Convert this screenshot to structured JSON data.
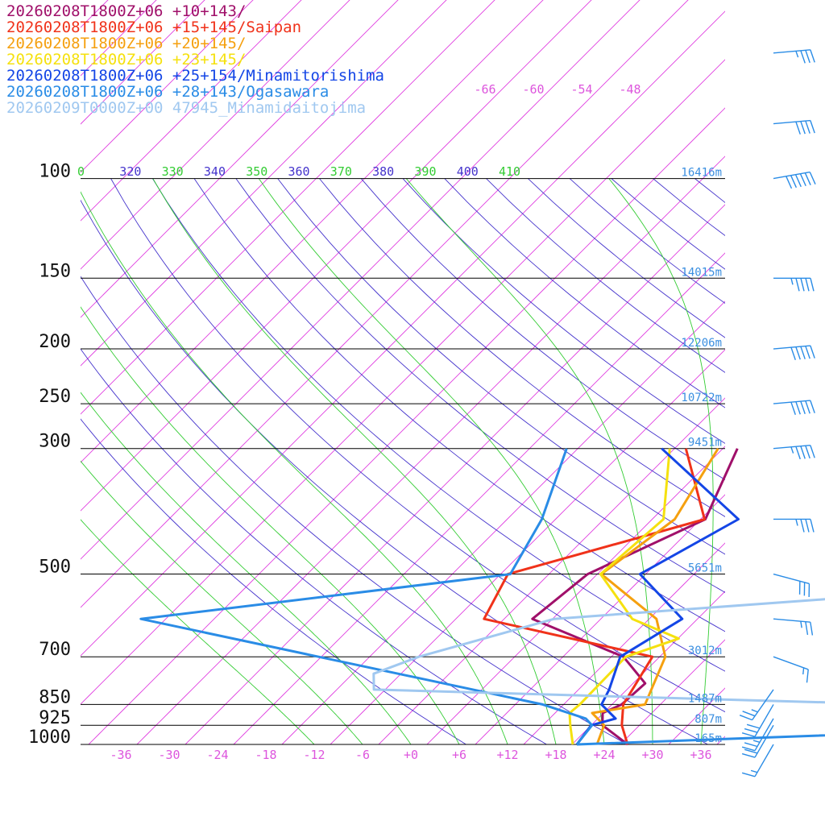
{
  "legend": [
    {
      "label": "20260208T1800Z+06 +10+143/",
      "color": "#a0106a"
    },
    {
      "label": "20260208T1800Z+06 +15+145/Saipan",
      "color": "#f0321a"
    },
    {
      "label": "20260208T1800Z+06 +20+145/",
      "color": "#f5a00f"
    },
    {
      "label": "20260208T1800Z+06 +23+145/",
      "color": "#f5e10f"
    },
    {
      "label": "20260208T1800Z+06 +25+154/Minamitorishima",
      "color": "#1446e6"
    },
    {
      "label": "20260208T1800Z+06 +28+143/Ogasawara",
      "color": "#2a8ce6"
    },
    {
      "label": "20260209T0000Z+00 47945_Minamidaitojima",
      "color": "#a0c8f0"
    }
  ],
  "chart_data": {
    "type": "line",
    "chart_kind": "skew-T log-p diagram",
    "pressure_levels": [
      {
        "p": 100,
        "label": "100",
        "height": "16416m"
      },
      {
        "p": 150,
        "label": "150",
        "height": "14015m"
      },
      {
        "p": 200,
        "label": "200",
        "height": "12206m"
      },
      {
        "p": 250,
        "label": "250",
        "height": "10722m"
      },
      {
        "p": 300,
        "label": "300",
        "height": "9451m"
      },
      {
        "p": 500,
        "label": "500",
        "height": "5651m"
      },
      {
        "p": 700,
        "label": "700",
        "height": "3012m"
      },
      {
        "p": 850,
        "label": "850",
        "height": "1487m"
      },
      {
        "p": 925,
        "label": "925",
        "height": "807m"
      },
      {
        "p": 1000,
        "label": "1000",
        "height": "165m"
      }
    ],
    "x_ticks": [
      "-36",
      "-30",
      "-24",
      "-18",
      "-12",
      "-6",
      "+0",
      "+6",
      "+12",
      "+18",
      "+24",
      "+30",
      "+36"
    ],
    "x_tick_values": [
      -36,
      -30,
      -24,
      -18,
      -12,
      -6,
      0,
      6,
      12,
      18,
      24,
      30,
      36
    ],
    "top_isotherm_labels": [
      "-66",
      "-60",
      "-54",
      "-48"
    ],
    "theta_labels": [
      {
        "text": "0",
        "color": "#33cc33"
      },
      {
        "text": "320",
        "color": "#4433cc"
      },
      {
        "text": "330",
        "color": "#33cc33"
      },
      {
        "text": "340",
        "color": "#4433cc"
      },
      {
        "text": "350",
        "color": "#33cc33"
      },
      {
        "text": "360",
        "color": "#4433cc"
      },
      {
        "text": "370",
        "color": "#33cc33"
      },
      {
        "text": "380",
        "color": "#4433cc"
      },
      {
        "text": "390",
        "color": "#33cc33"
      },
      {
        "text": "400",
        "color": "#4433cc"
      },
      {
        "text": "410",
        "color": "#33cc33"
      }
    ],
    "temperature_range": [
      -41,
      39
    ],
    "pressure_range": [
      100,
      1000
    ],
    "log_pressure_axis": true,
    "colors": {
      "isotherm": "#e040e0",
      "dry_adiabat": "#4433cc",
      "moist_adiabat": "#33cc33",
      "isobar": "#000000",
      "level_height_label": "#3b8fe0",
      "tick_label": "#dd55dd"
    },
    "series": [
      {
        "name": "20260208T1800Z+06 +10+143/",
        "color": "#a0106a",
        "temperature": [
          [
            33.8,
            20
          ],
          [
            50.4,
            40
          ],
          [
            56.8,
            60
          ],
          [
            80.3,
            80
          ],
          [
            88.9,
            95
          ],
          [
            100.6,
            110
          ],
          [
            100.7,
            130
          ],
          [
            109.5,
            150
          ],
          [
            114.5,
            175
          ],
          [
            120.6,
            200
          ],
          [
            120.9,
            250
          ],
          [
            117.6,
            300
          ],
          [
            119.6,
            400
          ],
          [
            123.8,
            500
          ],
          [
            122.3,
            600
          ],
          [
            124.1,
            700
          ],
          [
            121.8,
            800
          ],
          [
            123.1,
            850
          ],
          [
            124.6,
            900
          ],
          [
            126.5,
            925
          ],
          [
            126.9,
            1000
          ]
        ],
        "dewpoint": [
          [
            3.8,
            300
          ],
          [
            8.6,
            400
          ],
          [
            0.8,
            500
          ],
          [
            -0.5,
            600
          ],
          [
            15.5,
            700
          ],
          [
            21.5,
            780
          ],
          [
            21.2,
            850
          ],
          [
            19.9,
            880
          ],
          [
            21.4,
            925
          ],
          [
            26.9,
            1000
          ]
        ]
      },
      {
        "name": "20260208T1800Z+06 +15+145/Saipan",
        "color": "#f0321a",
        "temperature": [
          [
            34.1,
            20
          ],
          [
            53.2,
            40
          ],
          [
            63.2,
            60
          ],
          [
            81.5,
            80
          ],
          [
            90.2,
            95
          ],
          [
            95.1,
            110
          ],
          [
            97.0,
            130
          ],
          [
            106.2,
            150
          ],
          [
            111.4,
            175
          ],
          [
            117.9,
            200
          ],
          [
            119.4,
            250
          ],
          [
            118.4,
            300
          ],
          [
            118.5,
            400
          ],
          [
            122.3,
            500
          ],
          [
            119.3,
            600
          ],
          [
            122.2,
            700
          ],
          [
            122.3,
            800
          ],
          [
            120.0,
            850
          ],
          [
            123.5,
            900
          ],
          [
            124.3,
            925
          ],
          [
            126.9,
            1000
          ]
        ],
        "dewpoint": [
          [
            -2.6,
            300
          ],
          [
            8.5,
            400
          ],
          [
            -9.1,
            500
          ],
          [
            -6.5,
            600
          ],
          [
            19.1,
            700
          ],
          [
            21.4,
            850
          ],
          [
            23.8,
            925
          ],
          [
            26.9,
            1000
          ]
        ]
      },
      {
        "name": "20260208T1800Z+06 +20+145/",
        "color": "#f5a00f",
        "temperature": [
          [
            34.0,
            20
          ],
          [
            47.9,
            40
          ],
          [
            59.4,
            60
          ],
          [
            79.3,
            80
          ],
          [
            85.1,
            95
          ],
          [
            88.2,
            110
          ],
          [
            98.2,
            130
          ],
          [
            108.7,
            150
          ],
          [
            113.6,
            175
          ],
          [
            114.0,
            200
          ],
          [
            120.6,
            250
          ],
          [
            117.3,
            300
          ],
          [
            115.9,
            400
          ],
          [
            120.8,
            500
          ],
          [
            123.3,
            600
          ],
          [
            122.3,
            700
          ],
          [
            124.5,
            800
          ],
          [
            123.9,
            850
          ],
          [
            121.8,
            900
          ],
          [
            121.5,
            925
          ],
          [
            123.1,
            1000
          ]
        ],
        "dewpoint": [
          [
            1.4,
            300
          ],
          [
            4.8,
            400
          ],
          [
            2.5,
            500
          ],
          [
            14.9,
            600
          ],
          [
            20.7,
            700
          ],
          [
            24.1,
            850
          ],
          [
            18.6,
            880
          ],
          [
            21.6,
            925
          ],
          [
            23.1,
            1000
          ]
        ]
      },
      {
        "name": "20260208T1800Z+06 +23+145/",
        "color": "#f5e10f",
        "temperature": [
          [
            31.3,
            20
          ],
          [
            40.6,
            40
          ],
          [
            56.0,
            60
          ],
          [
            79.3,
            80
          ],
          [
            87.8,
            95
          ],
          [
            86.6,
            110
          ],
          [
            97.7,
            130
          ],
          [
            107.1,
            150
          ],
          [
            114.1,
            175
          ],
          [
            117.0,
            200
          ],
          [
            118.9,
            250
          ],
          [
            117.0,
            300
          ],
          [
            115.7,
            400
          ],
          [
            115.9,
            500
          ],
          [
            121.5,
            600
          ],
          [
            120.6,
            700
          ],
          [
            119.2,
            800
          ],
          [
            121.4,
            850
          ],
          [
            120.5,
            900
          ],
          [
            119.8,
            925
          ],
          [
            120.1,
            1000
          ]
        ],
        "dewpoint": [
          [
            -4.6,
            300
          ],
          [
            3.4,
            400
          ],
          [
            2.4,
            500
          ],
          [
            11.9,
            600
          ],
          [
            20.1,
            650
          ],
          [
            15.8,
            700
          ],
          [
            16.0,
            850
          ],
          [
            15.8,
            880
          ],
          [
            17.4,
            925
          ],
          [
            20.1,
            1000
          ]
        ]
      },
      {
        "name": "20260208T1800Z+06 +25+154/Minamitorishima",
        "color": "#1446e6",
        "temperature": [
          [
            37.8,
            40
          ],
          [
            40.3,
            60
          ],
          [
            59.6,
            80
          ],
          [
            65.8,
            95
          ],
          [
            86.1,
            110
          ],
          [
            96.5,
            130
          ],
          [
            103.3,
            150
          ],
          [
            109.6,
            175
          ],
          [
            116.6,
            200
          ],
          [
            119.7,
            250
          ],
          [
            118.9,
            300
          ],
          [
            117.3,
            400
          ],
          [
            121.1,
            500
          ],
          [
            119.5,
            600
          ],
          [
            119.4,
            700
          ],
          [
            120.1,
            800
          ],
          [
            118.5,
            850
          ],
          [
            120.7,
            900
          ],
          [
            119.7,
            925
          ],
          [
            120.6,
            1000
          ]
        ],
        "dewpoint": [
          [
            -5.6,
            300
          ],
          [
            12.7,
            400
          ],
          [
            7.3,
            500
          ],
          [
            18.1,
            600
          ],
          [
            15.1,
            700
          ],
          [
            17.8,
            800
          ],
          [
            18.7,
            850
          ],
          [
            22.2,
            900
          ],
          [
            20.0,
            925
          ],
          [
            20.6,
            1000
          ]
        ]
      },
      {
        "name": "20260208T1800Z+06 +28+143/Ogasawara",
        "color": "#2a8ce6",
        "temperature": [
          [
            31.3,
            20
          ],
          [
            53.8,
            40
          ],
          [
            62.6,
            60
          ],
          [
            77.9,
            80
          ],
          [
            92.8,
            95
          ],
          [
            96.5,
            110
          ],
          [
            96.2,
            130
          ],
          [
            102.8,
            150
          ],
          [
            113.4,
            175
          ],
          [
            116.2,
            200
          ],
          [
            121.4,
            250
          ],
          [
            122.8,
            300
          ],
          [
            121.3,
            400
          ],
          [
            121.8,
            500
          ],
          [
            118.4,
            600
          ],
          [
            114.6,
            700
          ],
          [
            112.1,
            800
          ],
          [
            105.2,
            850
          ],
          [
            83.3,
            925
          ],
          [
            20.6,
            1000
          ]
        ],
        "dewpoint": [
          [
            -17.4,
            300
          ],
          [
            -11.7,
            400
          ],
          [
            -8.8,
            500
          ],
          [
            -49.1,
            600
          ],
          [
            11.4,
            850
          ],
          [
            18.5,
            900
          ],
          [
            20.1,
            925
          ],
          [
            20.6,
            1000
          ]
        ]
      },
      {
        "name": "20260209T0000Z+00 47945_Minamidaitojima",
        "color": "#a0c8f0",
        "temperature": [
          [
            102.9,
            100
          ],
          [
            101.8,
            110
          ],
          [
            101.7,
            130
          ],
          [
            106.2,
            150
          ],
          [
            106.9,
            175
          ],
          [
            119.2,
            200
          ],
          [
            117.0,
            250
          ],
          [
            113.7,
            300
          ],
          [
            115.1,
            400
          ],
          [
            115.3,
            500
          ],
          [
            118.1,
            600
          ],
          [
            119.1,
            650
          ],
          [
            118.5,
            700
          ],
          [
            109.9,
            800
          ],
          [
            97.5,
            850
          ],
          [
            84.1,
            900
          ],
          [
            75.6,
            925
          ],
          [
            54.6,
            1000
          ]
        ],
        "dewpoint": [
          [
            9.4,
            100
          ],
          [
            15.5,
            110
          ],
          [
            25.6,
            150
          ],
          [
            35.3,
            175
          ],
          [
            37.3,
            200
          ],
          [
            56.2,
            250
          ],
          [
            27.1,
            300
          ],
          [
            19.1,
            310
          ],
          [
            35.5,
            350
          ],
          [
            40.4,
            400
          ],
          [
            61.0,
            450
          ],
          [
            66.0,
            490
          ],
          [
            68.4,
            500
          ],
          [
            36.1,
            550
          ],
          [
            2.2,
            600
          ],
          [
            -9.9,
            700
          ],
          [
            -13.4,
            750
          ],
          [
            -11.4,
            800
          ],
          [
            55.7,
            850
          ],
          [
            59.2,
            900
          ],
          [
            58.0,
            925
          ],
          [
            59.7,
            940
          ],
          [
            57.2,
            1000
          ]
        ]
      }
    ],
    "wind_barbs": [
      {
        "p": 20,
        "dir": 265,
        "spd": 30
      },
      {
        "p": 40,
        "dir": 265,
        "spd": 40
      },
      {
        "p": 60,
        "dir": 265,
        "spd": 35
      },
      {
        "p": 80,
        "dir": 265,
        "spd": 40
      },
      {
        "p": 100,
        "dir": 260,
        "spd": 60
      },
      {
        "p": 150,
        "dir": 270,
        "spd": 45
      },
      {
        "p": 200,
        "dir": 265,
        "spd": 50
      },
      {
        "p": 250,
        "dir": 265,
        "spd": 50
      },
      {
        "p": 300,
        "dir": 265,
        "spd": 45
      },
      {
        "p": 400,
        "dir": 270,
        "spd": 35
      },
      {
        "p": 500,
        "dir": 285,
        "spd": 30
      },
      {
        "p": 600,
        "dir": 275,
        "spd": 25
      },
      {
        "p": 700,
        "dir": 290,
        "spd": 15
      },
      {
        "p": 800,
        "dir": 35,
        "spd": 25
      },
      {
        "p": 850,
        "dir": 30,
        "spd": 30
      },
      {
        "p": 900,
        "dir": 30,
        "spd": 25
      },
      {
        "p": 925,
        "dir": 30,
        "spd": 20
      },
      {
        "p": 1000,
        "dir": 30,
        "spd": 15
      }
    ]
  }
}
